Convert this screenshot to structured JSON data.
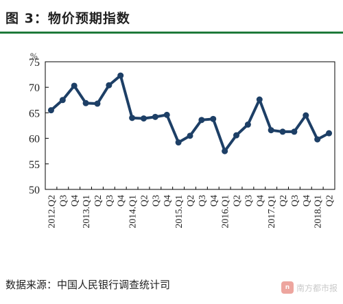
{
  "figure": {
    "title": "图 3：物价预期指数",
    "source": "数据来源：中国人民银行调查统计司"
  },
  "watermark": {
    "logo_text": "n",
    "text": "南方都市报"
  },
  "chart_data": {
    "type": "line",
    "title": "",
    "unit_label": "%",
    "xlabel": "",
    "ylabel": "",
    "ylim": [
      50,
      75
    ],
    "yticks": [
      50,
      55,
      60,
      65,
      70,
      75
    ],
    "grid": false,
    "x": [
      "2012.Q2",
      "Q3",
      "Q4",
      "2013.Q1",
      "Q2",
      "Q3",
      "Q4",
      "2014.Q1",
      "Q2",
      "Q3",
      "Q4",
      "2015.Q1",
      "Q2",
      "Q3",
      "Q4",
      "2016.Q1",
      "Q2",
      "Q3",
      "Q4",
      "2017.Q1",
      "Q2",
      "Q3",
      "Q4",
      "2018.Q1",
      "Q2"
    ],
    "series": [
      {
        "name": "",
        "color": "#1d3f66",
        "values": [
          65.5,
          67.5,
          70.3,
          66.9,
          66.8,
          70.4,
          72.3,
          64.0,
          63.9,
          64.2,
          64.6,
          59.2,
          60.5,
          63.6,
          63.8,
          57.5,
          60.6,
          62.7,
          67.6,
          61.6,
          61.3,
          61.3,
          64.5,
          59.8,
          61.0
        ]
      }
    ]
  }
}
